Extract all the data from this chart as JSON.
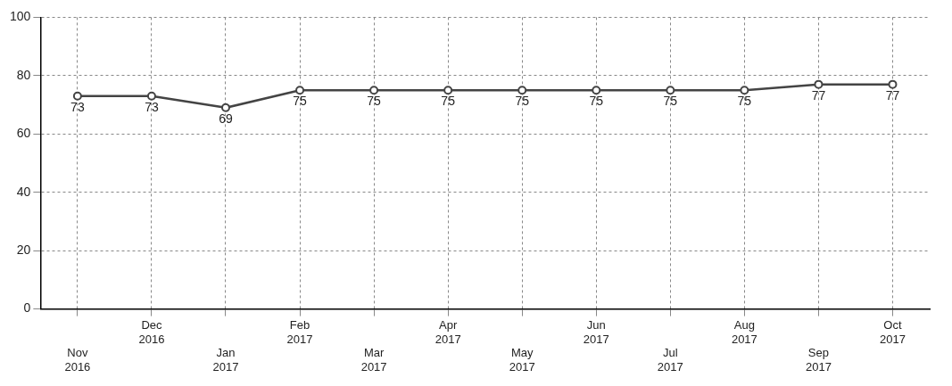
{
  "chart_data": {
    "type": "line",
    "categories": [
      "Nov 2016",
      "Dec 2016",
      "Jan 2017",
      "Feb 2017",
      "Mar 2017",
      "Apr 2017",
      "May 2017",
      "Jun 2017",
      "Jul 2017",
      "Aug 2017",
      "Sep 2017",
      "Oct 2017"
    ],
    "series": [
      {
        "color": "#444444",
        "values": [
          73,
          73,
          69,
          75,
          75,
          75,
          75,
          75,
          75,
          75,
          77,
          77
        ]
      }
    ],
    "ylim": [
      0,
      100
    ],
    "yticks": [
      0,
      20,
      40,
      60,
      80,
      100
    ],
    "grid": true,
    "marker": "circle",
    "line_style": "solid",
    "data_labels": true,
    "legend": false
  }
}
